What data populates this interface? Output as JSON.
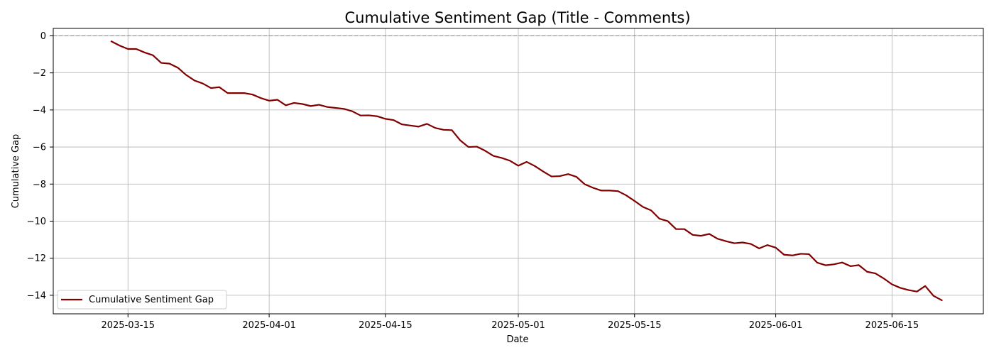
{
  "chart_data": {
    "type": "line",
    "title": "Cumulative Sentiment Gap (Title - Comments)",
    "xlabel": "Date",
    "ylabel": "Cumulative Gap",
    "xlim": [
      "2025-03-06",
      "2025-06-26"
    ],
    "ylim": [
      -15,
      0.4
    ],
    "x_ticks": [
      "2025-03-15",
      "2025-04-01",
      "2025-04-15",
      "2025-05-01",
      "2025-05-15",
      "2025-06-01",
      "2025-06-15"
    ],
    "y_ticks": [
      0,
      -2,
      -4,
      -6,
      -8,
      -10,
      -12,
      -14
    ],
    "y_tick_labels": [
      "0",
      "−2",
      "−4",
      "−6",
      "−8",
      "−10",
      "−12",
      "−14"
    ],
    "grid": true,
    "legend_position": "lower-left",
    "reference_line": {
      "y": 0,
      "style": "dashed",
      "color": "#808080"
    },
    "series": [
      {
        "name": "Cumulative Sentiment Gap",
        "color": "#800000",
        "start_date": "2025-03-13",
        "values": [
          -0.3,
          -0.53,
          -0.71,
          -0.71,
          -0.9,
          -1.05,
          -1.46,
          -1.5,
          -1.72,
          -2.11,
          -2.41,
          -2.57,
          -2.82,
          -2.77,
          -3.09,
          -3.09,
          -3.09,
          -3.17,
          -3.36,
          -3.5,
          -3.45,
          -3.75,
          -3.62,
          -3.68,
          -3.79,
          -3.72,
          -3.84,
          -3.89,
          -3.94,
          -4.07,
          -4.3,
          -4.29,
          -4.34,
          -4.48,
          -4.55,
          -4.78,
          -4.84,
          -4.9,
          -4.75,
          -4.97,
          -5.07,
          -5.09,
          -5.64,
          -6.0,
          -5.98,
          -6.2,
          -6.48,
          -6.59,
          -6.74,
          -7.01,
          -6.8,
          -7.03,
          -7.32,
          -7.59,
          -7.57,
          -7.46,
          -7.61,
          -8.01,
          -8.2,
          -8.35,
          -8.35,
          -8.38,
          -8.61,
          -8.91,
          -9.23,
          -9.42,
          -9.87,
          -10.0,
          -10.43,
          -10.43,
          -10.74,
          -10.79,
          -10.69,
          -10.95,
          -11.08,
          -11.19,
          -11.15,
          -11.23,
          -11.47,
          -11.29,
          -11.43,
          -11.81,
          -11.85,
          -11.76,
          -11.78,
          -12.24,
          -12.38,
          -12.33,
          -12.23,
          -12.43,
          -12.37,
          -12.73,
          -12.82,
          -13.09,
          -13.41,
          -13.6,
          -13.72,
          -13.8,
          -13.5,
          -14.03,
          -14.27
        ]
      }
    ]
  }
}
